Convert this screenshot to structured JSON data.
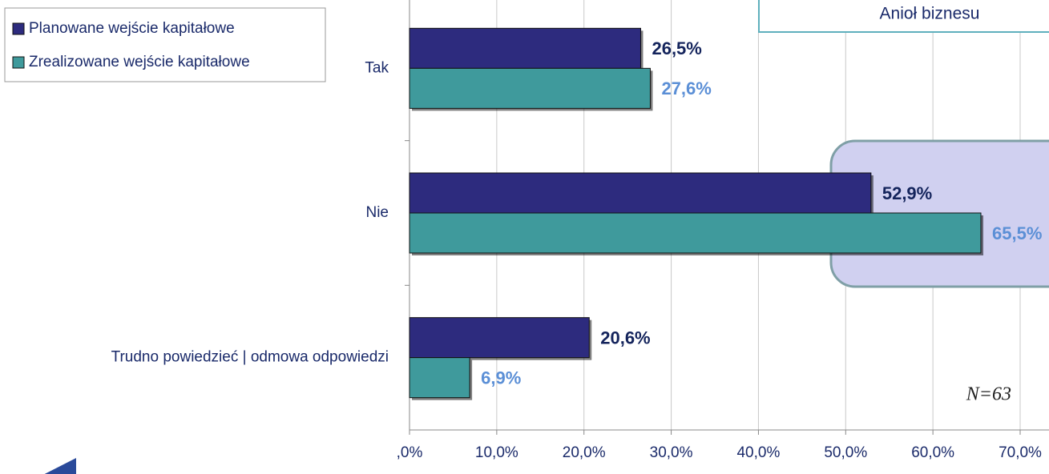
{
  "chart_data": {
    "type": "hbar",
    "categories": [
      "Tak",
      "Nie",
      "Trudno powiedzieć | odmowa odpowiedzi"
    ],
    "series": [
      {
        "name": "Planowane wejście kapitałowe",
        "color": "#2d2b7e",
        "label_color": "#14245c",
        "values": [
          26.5,
          52.9,
          20.6
        ],
        "value_labels": [
          "26,5%",
          "52,9%",
          "20,6%"
        ]
      },
      {
        "name": "Zrealizowane wejście kapitałowe",
        "color": "#3f9a9c",
        "label_color": "#5b8fd6",
        "values": [
          27.6,
          65.5,
          6.9
        ],
        "value_labels": [
          "27,6%",
          "65,5%",
          "6,9%"
        ]
      }
    ],
    "xlim": [
      0,
      70
    ],
    "xticks": [
      {
        "value": 0,
        "label": ",0%"
      },
      {
        "value": 10,
        "label": "10,0%"
      },
      {
        "value": 20,
        "label": "20,0%"
      },
      {
        "value": 30,
        "label": "30,0%"
      },
      {
        "value": 40,
        "label": "40,0%"
      },
      {
        "value": 50,
        "label": "50,0%"
      },
      {
        "value": 60,
        "label": "60,0%"
      },
      {
        "value": 70,
        "label": "70,0%"
      }
    ],
    "grid": true,
    "legend": "top-left",
    "annotations": [
      "Anioł biznesu",
      "N=63"
    ]
  }
}
